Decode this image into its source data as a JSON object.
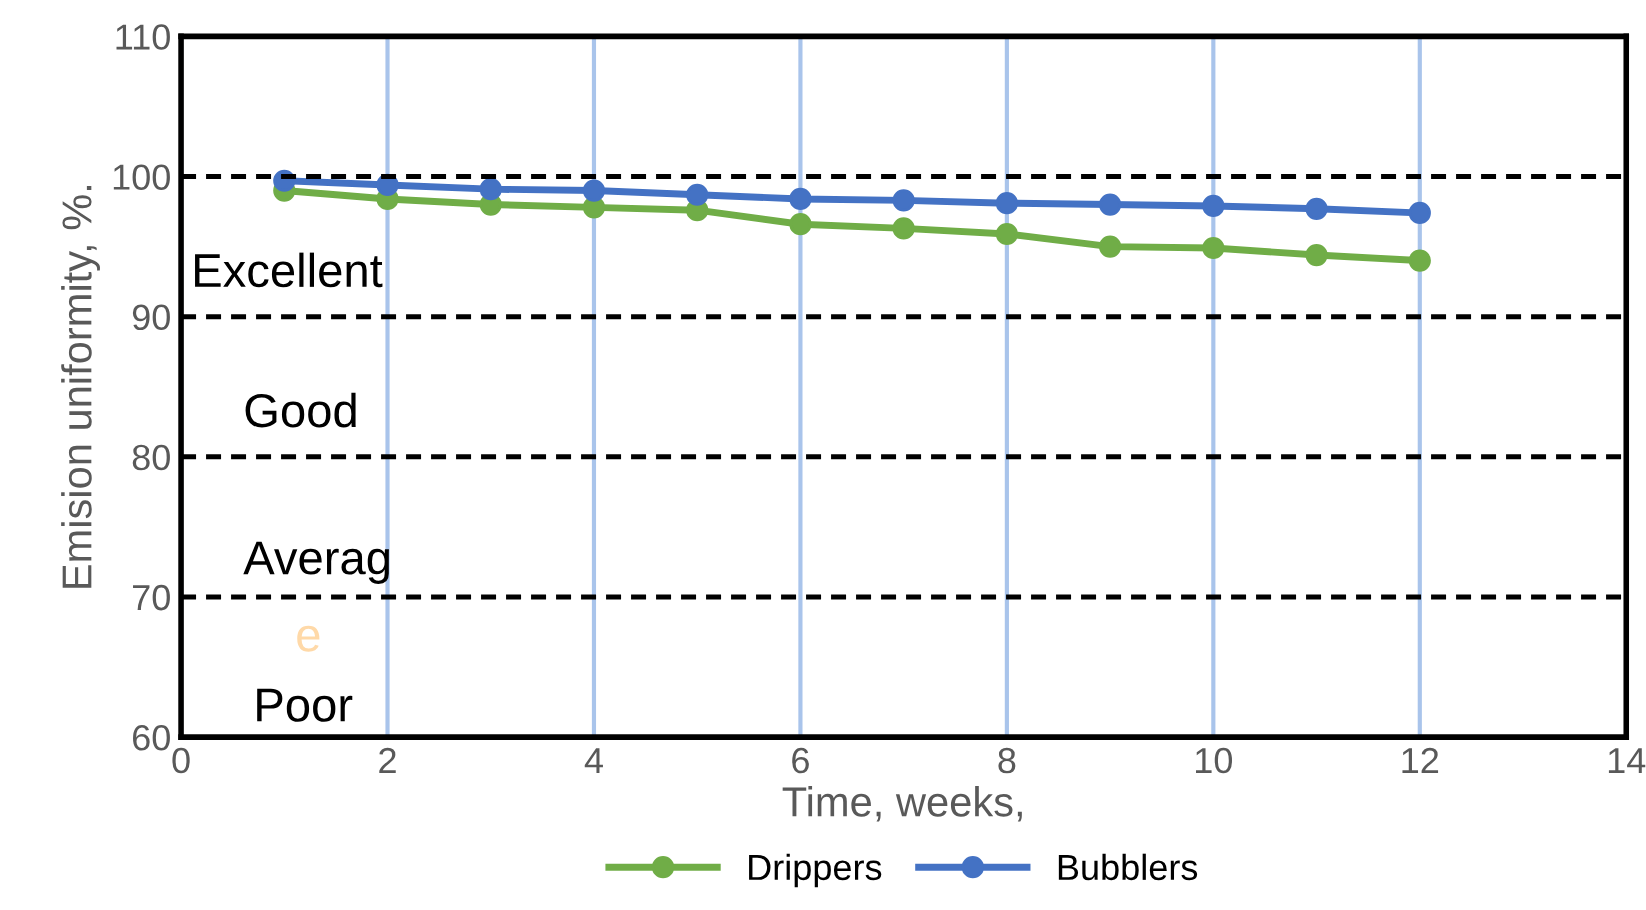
{
  "chart_data": {
    "type": "line",
    "xlabel": "Time, weeks,",
    "ylabel": "Emision uniformity, %.",
    "x": [
      1,
      2,
      3,
      4,
      5,
      6,
      7,
      8,
      9,
      10,
      11,
      12
    ],
    "series": [
      {
        "name": "Drippers",
        "color": "#70ad47",
        "values": [
          99.0,
          98.4,
          98.0,
          97.8,
          97.6,
          96.6,
          96.3,
          95.9,
          95.0,
          94.9,
          94.4,
          94.0
        ]
      },
      {
        "name": "Bubblers",
        "color": "#4472c4",
        "values": [
          99.7,
          99.4,
          99.1,
          99.0,
          98.7,
          98.4,
          98.3,
          98.1,
          98.0,
          97.9,
          97.7,
          97.4
        ]
      }
    ],
    "xlim": [
      0,
      14
    ],
    "xticks": [
      0,
      2,
      4,
      6,
      8,
      10,
      12,
      14
    ],
    "ylim": [
      60,
      110
    ],
    "yticks": [
      60,
      70,
      80,
      90,
      100,
      110
    ],
    "grid": "x",
    "legend": "bottom",
    "marker": "circle",
    "line_style": "solid",
    "ref_lines": [
      {
        "axis": "y",
        "value": 100,
        "color": "#000000",
        "line_style": "dashed"
      },
      {
        "axis": "y",
        "value": 90,
        "color": "#000000",
        "line_style": "dashed"
      },
      {
        "axis": "y",
        "value": 80,
        "color": "#000000",
        "line_style": "dashed"
      },
      {
        "axis": "y",
        "value": 70,
        "color": "#000000",
        "line_style": "dashed"
      }
    ],
    "annotations": [
      "Excellent",
      "Good",
      "Averag",
      "e",
      "Poor"
    ]
  }
}
